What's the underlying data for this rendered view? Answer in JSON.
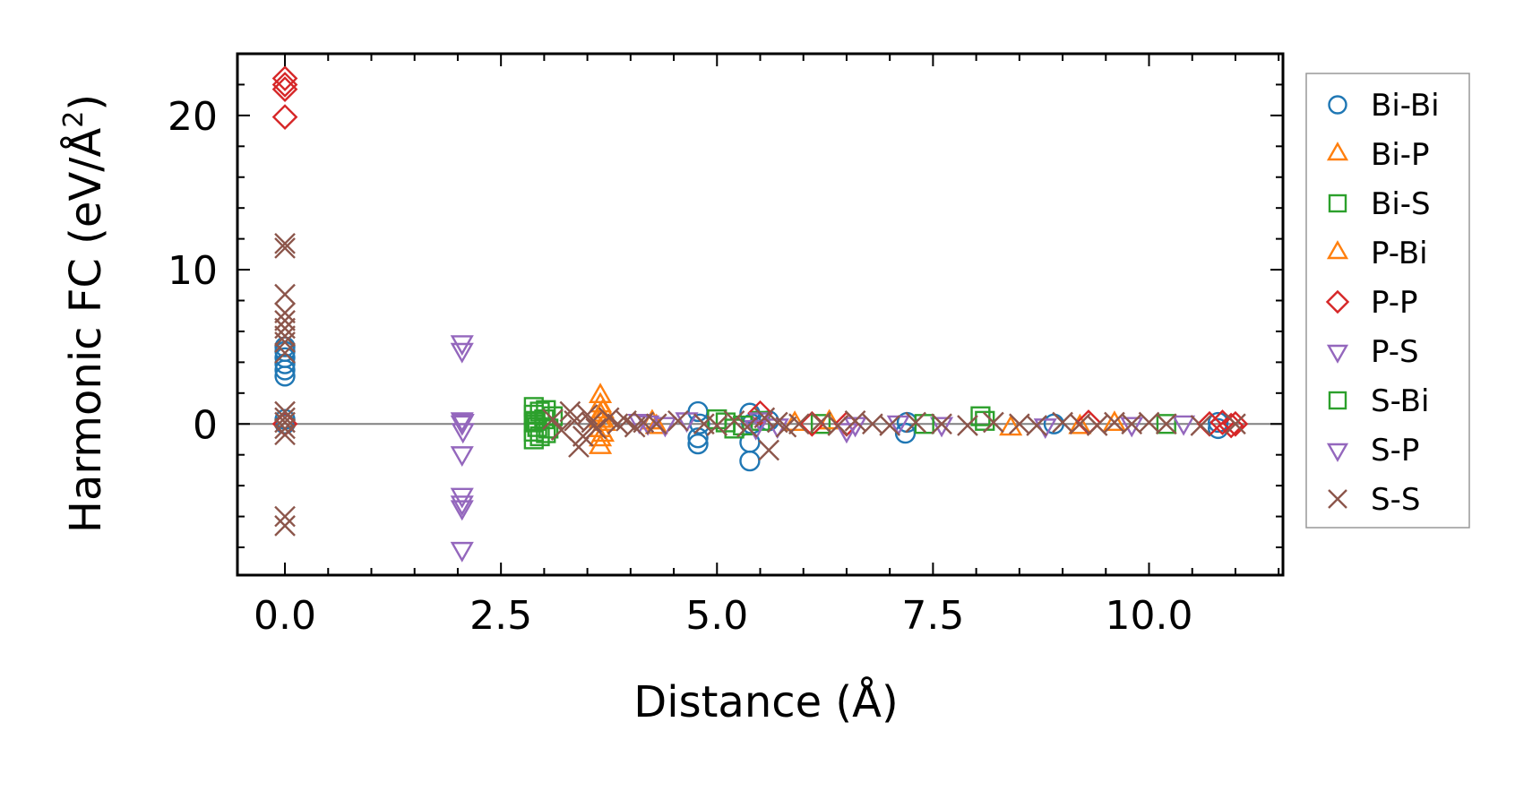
{
  "chart_data": {
    "type": "scatter",
    "title": "",
    "xlabel": "Distance (Å)",
    "ylabel": {
      "main": "Harmonic FC (eV/Å",
      "sup": "2",
      "close": ")"
    },
    "xlim": [
      -0.55,
      11.55
    ],
    "ylim": [
      -9.8,
      24
    ],
    "xticks": [
      {
        "v": 0,
        "label": "0.0"
      },
      {
        "v": 2.5,
        "label": "2.5"
      },
      {
        "v": 5,
        "label": "5.0"
      },
      {
        "v": 7.5,
        "label": "7.5"
      },
      {
        "v": 10,
        "label": "10.0"
      }
    ],
    "yticks": [
      {
        "v": 0,
        "label": "0"
      },
      {
        "v": 10,
        "label": "10"
      },
      {
        "v": 20,
        "label": "20"
      }
    ],
    "reference_line_y": 0,
    "legend_position": "outside-right",
    "series": [
      {
        "name": "Bi-Bi",
        "marker": "circle",
        "color": "#1f77b4",
        "points": [
          [
            0,
            3.1
          ],
          [
            0,
            3.5
          ],
          [
            0,
            3.9
          ],
          [
            0,
            4.3
          ],
          [
            0,
            4.7
          ],
          [
            0,
            5.0
          ],
          [
            0,
            0
          ],
          [
            0,
            0.3
          ],
          [
            4.78,
            0.8
          ],
          [
            4.78,
            -1.3
          ],
          [
            4.78,
            -0.9
          ],
          [
            4.8,
            0
          ],
          [
            5.38,
            0.7
          ],
          [
            5.38,
            -2.4
          ],
          [
            5.38,
            -1.2
          ],
          [
            5.4,
            0
          ],
          [
            5.6,
            0.2
          ],
          [
            7.18,
            -0.6
          ],
          [
            7.2,
            0.1
          ],
          [
            8.9,
            0
          ],
          [
            10.8,
            -0.3
          ],
          [
            10.8,
            0.1
          ]
        ]
      },
      {
        "name": "Bi-P",
        "marker": "triangle-up",
        "color": "#ff7f0e",
        "points": [
          [
            3.65,
            1.8
          ],
          [
            3.65,
            1.2
          ],
          [
            3.65,
            0.6
          ],
          [
            3.65,
            -0.4
          ],
          [
            3.65,
            -1.0
          ],
          [
            3.65,
            -1.5
          ],
          [
            3.65,
            0.2
          ],
          [
            4.25,
            0.1
          ],
          [
            5.9,
            0
          ],
          [
            8.4,
            -0.3
          ],
          [
            9.6,
            0
          ]
        ]
      },
      {
        "name": "Bi-S",
        "marker": "square",
        "color": "#2ca02c",
        "points": [
          [
            2.88,
            1.1
          ],
          [
            2.88,
            0.6
          ],
          [
            2.88,
            0.1
          ],
          [
            2.88,
            -0.5
          ],
          [
            2.88,
            -1.0
          ],
          [
            2.95,
            0.8
          ],
          [
            2.95,
            -0.8
          ],
          [
            3.0,
            0.3
          ],
          [
            3.05,
            -0.3
          ],
          [
            3.1,
            0.5
          ],
          [
            5.0,
            0.3
          ],
          [
            5.2,
            -0.3
          ],
          [
            5.5,
            0.2
          ],
          [
            6.2,
            0
          ],
          [
            8.05,
            0.5
          ],
          [
            10.2,
            0
          ]
        ]
      },
      {
        "name": "P-Bi",
        "marker": "triangle-up",
        "color": "#ff7f0e",
        "points": [
          [
            3.68,
            0.8
          ],
          [
            3.68,
            -0.7
          ],
          [
            3.7,
            0
          ],
          [
            4.3,
            -0.2
          ],
          [
            6.3,
            0.1
          ],
          [
            9.2,
            -0.2
          ]
        ]
      },
      {
        "name": "P-P",
        "marker": "diamond",
        "color": "#d62728",
        "points": [
          [
            0,
            22.4
          ],
          [
            0,
            22.0
          ],
          [
            0,
            21.7
          ],
          [
            0,
            19.9
          ],
          [
            0,
            0
          ],
          [
            5.5,
            0.7
          ],
          [
            6.1,
            0
          ],
          [
            6.5,
            0
          ],
          [
            9.3,
            0.1
          ],
          [
            10.7,
            0
          ],
          [
            10.85,
            0.1
          ],
          [
            10.95,
            -0.1
          ],
          [
            11.0,
            0
          ]
        ]
      },
      {
        "name": "P-S",
        "marker": "triangle-down",
        "color": "#9467bd",
        "points": [
          [
            2.05,
            5.3
          ],
          [
            2.05,
            4.8
          ],
          [
            2.05,
            0.3
          ],
          [
            2.05,
            0.1
          ],
          [
            2.05,
            -1.9
          ],
          [
            2.05,
            -4.6
          ],
          [
            2.05,
            -5.1
          ],
          [
            2.05,
            -5.4
          ],
          [
            2.05,
            -8.1
          ],
          [
            4.1,
            0.2
          ],
          [
            4.4,
            0
          ],
          [
            4.65,
            0.3
          ],
          [
            5.5,
            0.3
          ],
          [
            5.7,
            -0.1
          ],
          [
            6.5,
            -0.4
          ],
          [
            7.1,
            0.1
          ],
          [
            7.6,
            0
          ],
          [
            9.8,
            0
          ],
          [
            10.4,
            0.1
          ]
        ]
      },
      {
        "name": "S-Bi",
        "marker": "square",
        "color": "#2ca02c",
        "points": [
          [
            2.9,
            0.2
          ],
          [
            2.92,
            -0.2
          ],
          [
            3.02,
            0.9
          ],
          [
            3.02,
            -0.6
          ],
          [
            5.1,
            0.1
          ],
          [
            5.3,
            -0.1
          ],
          [
            7.4,
            0
          ],
          [
            8.1,
            0.2
          ]
        ]
      },
      {
        "name": "S-P",
        "marker": "triangle-down",
        "color": "#9467bd",
        "points": [
          [
            2.06,
            0.2
          ],
          [
            2.06,
            -0.4
          ],
          [
            4.2,
            0.1
          ],
          [
            5.45,
            -0.2
          ],
          [
            6.6,
            0
          ],
          [
            8.8,
            -0.1
          ]
        ]
      },
      {
        "name": "S-S",
        "marker": "x",
        "color": "#8c564b",
        "points": [
          [
            0,
            11.7
          ],
          [
            0,
            11.4
          ],
          [
            0,
            8.4
          ],
          [
            0,
            7.2
          ],
          [
            0,
            6.7
          ],
          [
            0,
            6.2
          ],
          [
            0,
            5.7
          ],
          [
            0,
            5.3
          ],
          [
            0,
            4.6
          ],
          [
            0,
            0.8
          ],
          [
            0,
            0.4
          ],
          [
            0,
            0.1
          ],
          [
            0,
            -0.3
          ],
          [
            0,
            -0.7
          ],
          [
            0,
            -6.0
          ],
          [
            0,
            -6.6
          ],
          [
            3.1,
            0.3
          ],
          [
            3.2,
            -0.4
          ],
          [
            3.3,
            0.8
          ],
          [
            3.35,
            0.2
          ],
          [
            3.4,
            -1.5
          ],
          [
            3.45,
            -0.8
          ],
          [
            3.5,
            0.6
          ],
          [
            3.55,
            0.1
          ],
          [
            3.6,
            -0.3
          ],
          [
            3.75,
            0.4
          ],
          [
            3.85,
            0
          ],
          [
            3.95,
            0.2
          ],
          [
            4.05,
            -0.2
          ],
          [
            4.15,
            0.1
          ],
          [
            4.3,
            0
          ],
          [
            4.55,
            0.2
          ],
          [
            4.85,
            0
          ],
          [
            5.0,
            -0.1
          ],
          [
            5.2,
            0.2
          ],
          [
            5.35,
            -0.2
          ],
          [
            5.55,
            0.4
          ],
          [
            5.6,
            -1.7
          ],
          [
            5.7,
            0.1
          ],
          [
            5.8,
            -0.2
          ],
          [
            5.95,
            0
          ],
          [
            6.2,
            0.1
          ],
          [
            6.4,
            -0.1
          ],
          [
            6.6,
            0.2
          ],
          [
            6.8,
            0
          ],
          [
            7.0,
            -0.1
          ],
          [
            7.3,
            0.1
          ],
          [
            7.6,
            0
          ],
          [
            7.9,
            -0.1
          ],
          [
            8.2,
            0.1
          ],
          [
            8.5,
            0
          ],
          [
            8.7,
            -0.1
          ],
          [
            9.0,
            0.1
          ],
          [
            9.2,
            0
          ],
          [
            9.4,
            -0.1
          ],
          [
            9.6,
            0.1
          ],
          [
            9.8,
            0
          ],
          [
            10.0,
            0.1
          ],
          [
            10.2,
            0
          ],
          [
            10.6,
            -0.1
          ],
          [
            11.0,
            0
          ]
        ]
      }
    ]
  }
}
